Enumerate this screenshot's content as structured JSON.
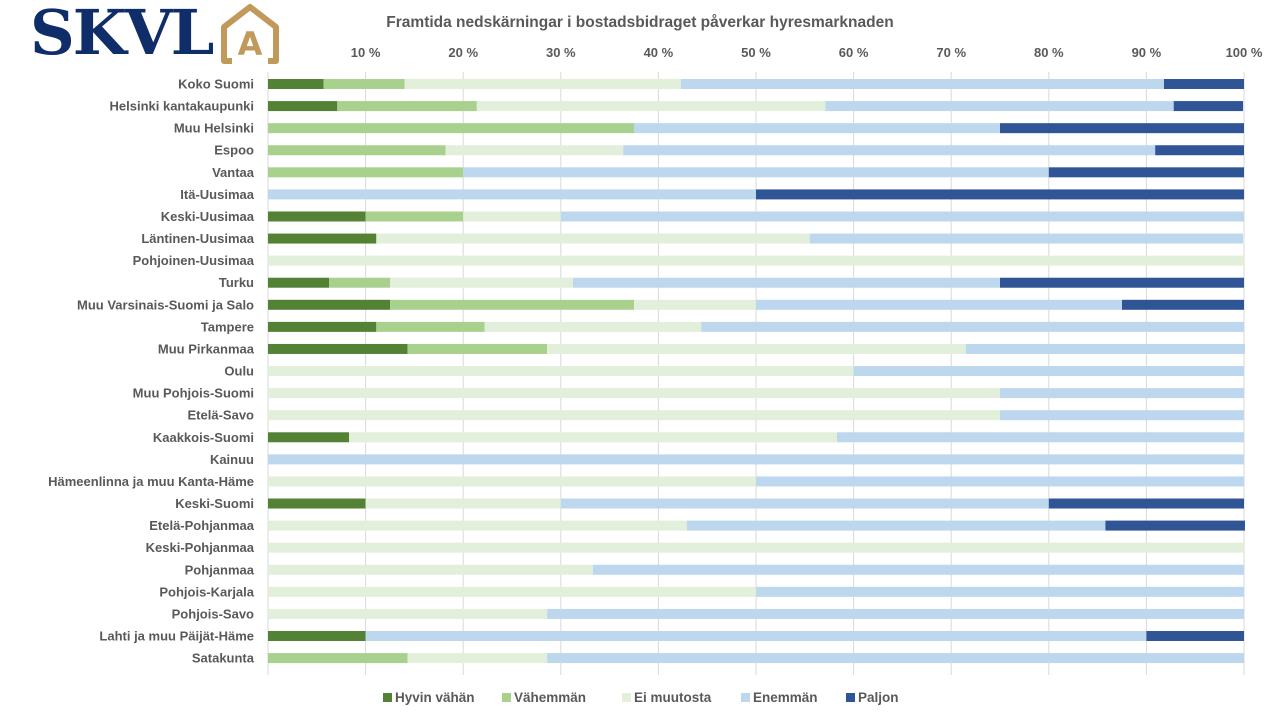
{
  "logo": {
    "text": "SKVL",
    "badge_letter": "A"
  },
  "chart_data": {
    "type": "bar",
    "orientation": "horizontal",
    "stacked": "100%",
    "title": "Framtida nedskärningar i bostadsbidraget påverkar hyresmarknaden",
    "xlim": [
      0,
      100
    ],
    "x_ticks": [
      "10 %",
      "20 %",
      "30 %",
      "40 %",
      "50 %",
      "60 %",
      "70 %",
      "80 %",
      "90 %",
      "100 %"
    ],
    "grid": true,
    "legend_position": "bottom",
    "categories": [
      "Koko Suomi",
      "Helsinki kantakaupunki",
      "Muu Helsinki",
      "Espoo",
      "Vantaa",
      "Itä-Uusimaa",
      "Keski-Uusimaa",
      "Läntinen-Uusimaa",
      "Pohjoinen-Uusimaa",
      "Turku",
      "Muu Varsinais-Suomi ja Salo",
      "Tampere",
      "Muu Pirkanmaa",
      "Oulu",
      "Muu Pohjois-Suomi",
      "Etelä-Savo",
      "Kaakkois-Suomi",
      "Kainuu",
      "Hämeenlinna ja muu Kanta-Häme",
      "Keski-Suomi",
      "Etelä-Pohjanmaa",
      "Keski-Pohjanmaa",
      "Pohjanmaa",
      "Pohjois-Karjala",
      "Pohjois-Savo",
      "Lahti ja muu Päijät-Häme",
      "Satakunta"
    ],
    "series": [
      {
        "name": "Hyvin vähän",
        "color": "#548235",
        "values": [
          5.7,
          7.1,
          0,
          0,
          0,
          0,
          10,
          11.1,
          0,
          6.25,
          12.5,
          11.1,
          14.3,
          0,
          0,
          0,
          8.3,
          0,
          0,
          10,
          0,
          0,
          0,
          0,
          0,
          10,
          0
        ]
      },
      {
        "name": "Vähemmän",
        "color": "#A9D18E",
        "values": [
          8.3,
          14.3,
          37.5,
          18.2,
          20,
          0,
          10,
          0,
          0,
          6.25,
          25,
          11.1,
          14.3,
          0,
          0,
          0,
          0,
          0,
          0,
          0,
          0,
          0,
          0,
          0,
          0,
          0,
          14.3
        ]
      },
      {
        "name": "Ei muutosta",
        "color": "#E2EFDA",
        "values": [
          28.3,
          35.7,
          0,
          18.2,
          0,
          0,
          10,
          44.4,
          100,
          18.75,
          12.5,
          22.2,
          42.9,
          60,
          75,
          75,
          50,
          0,
          50,
          20,
          42.9,
          100,
          33.3,
          50,
          28.6,
          0,
          14.3
        ]
      },
      {
        "name": "Enemmän",
        "color": "#BDD7EE",
        "values": [
          49.5,
          35.7,
          37.5,
          54.5,
          60,
          50,
          70,
          44.4,
          0,
          43.75,
          37.5,
          55.6,
          28.6,
          40,
          25,
          25,
          41.7,
          100,
          50,
          50,
          42.9,
          0,
          66.7,
          50,
          71.4,
          80,
          71.4
        ]
      },
      {
        "name": "Paljon",
        "color": "#2F5597",
        "values": [
          8.2,
          7.1,
          25,
          9.1,
          20,
          50,
          0,
          0,
          0,
          25,
          12.5,
          0,
          0,
          0,
          0,
          0,
          0,
          0,
          0,
          20,
          14.3,
          0,
          0,
          0,
          0,
          10,
          0
        ]
      }
    ]
  }
}
